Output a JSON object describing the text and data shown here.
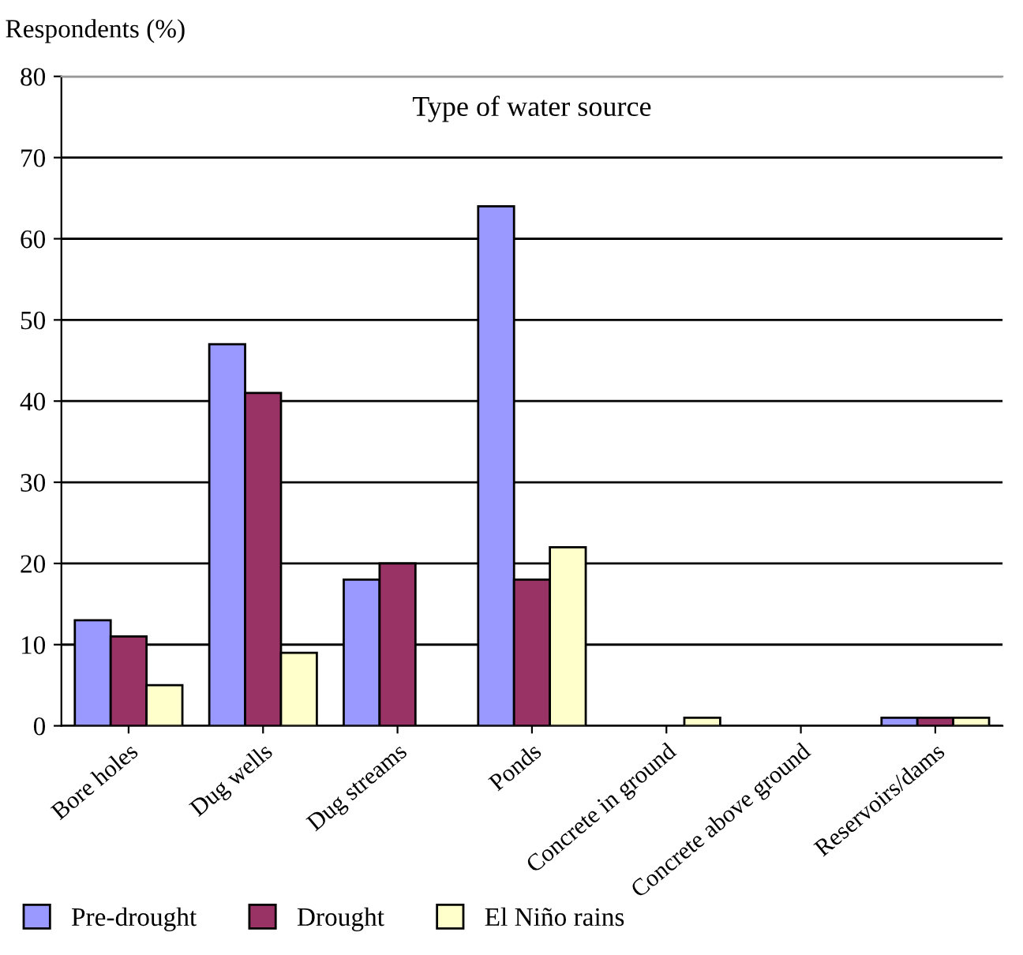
{
  "chart_data": {
    "type": "bar",
    "title": "Type of water source",
    "ylabel": "Respondents (%)",
    "categories": [
      "Bore holes",
      "Dug wells",
      "Dug streams",
      "Ponds",
      "Concrete in ground",
      "Concrete above ground",
      "Reservoirs/dams"
    ],
    "series": [
      {
        "name": "Pre-drought",
        "color": "#9999ff",
        "values": [
          13,
          47,
          18,
          64,
          0,
          0,
          1
        ]
      },
      {
        "name": "Drought",
        "color": "#993366",
        "values": [
          11,
          41,
          20,
          18,
          0,
          0,
          1
        ]
      },
      {
        "name": "El Niño rains",
        "color": "#ffffcc",
        "values": [
          5,
          9,
          0,
          22,
          1,
          0,
          1
        ]
      }
    ],
    "ylim": [
      0,
      80
    ],
    "yticks": [
      0,
      10,
      20,
      30,
      40,
      50,
      60,
      70,
      80
    ],
    "grid": "y",
    "legend": "bottom"
  }
}
